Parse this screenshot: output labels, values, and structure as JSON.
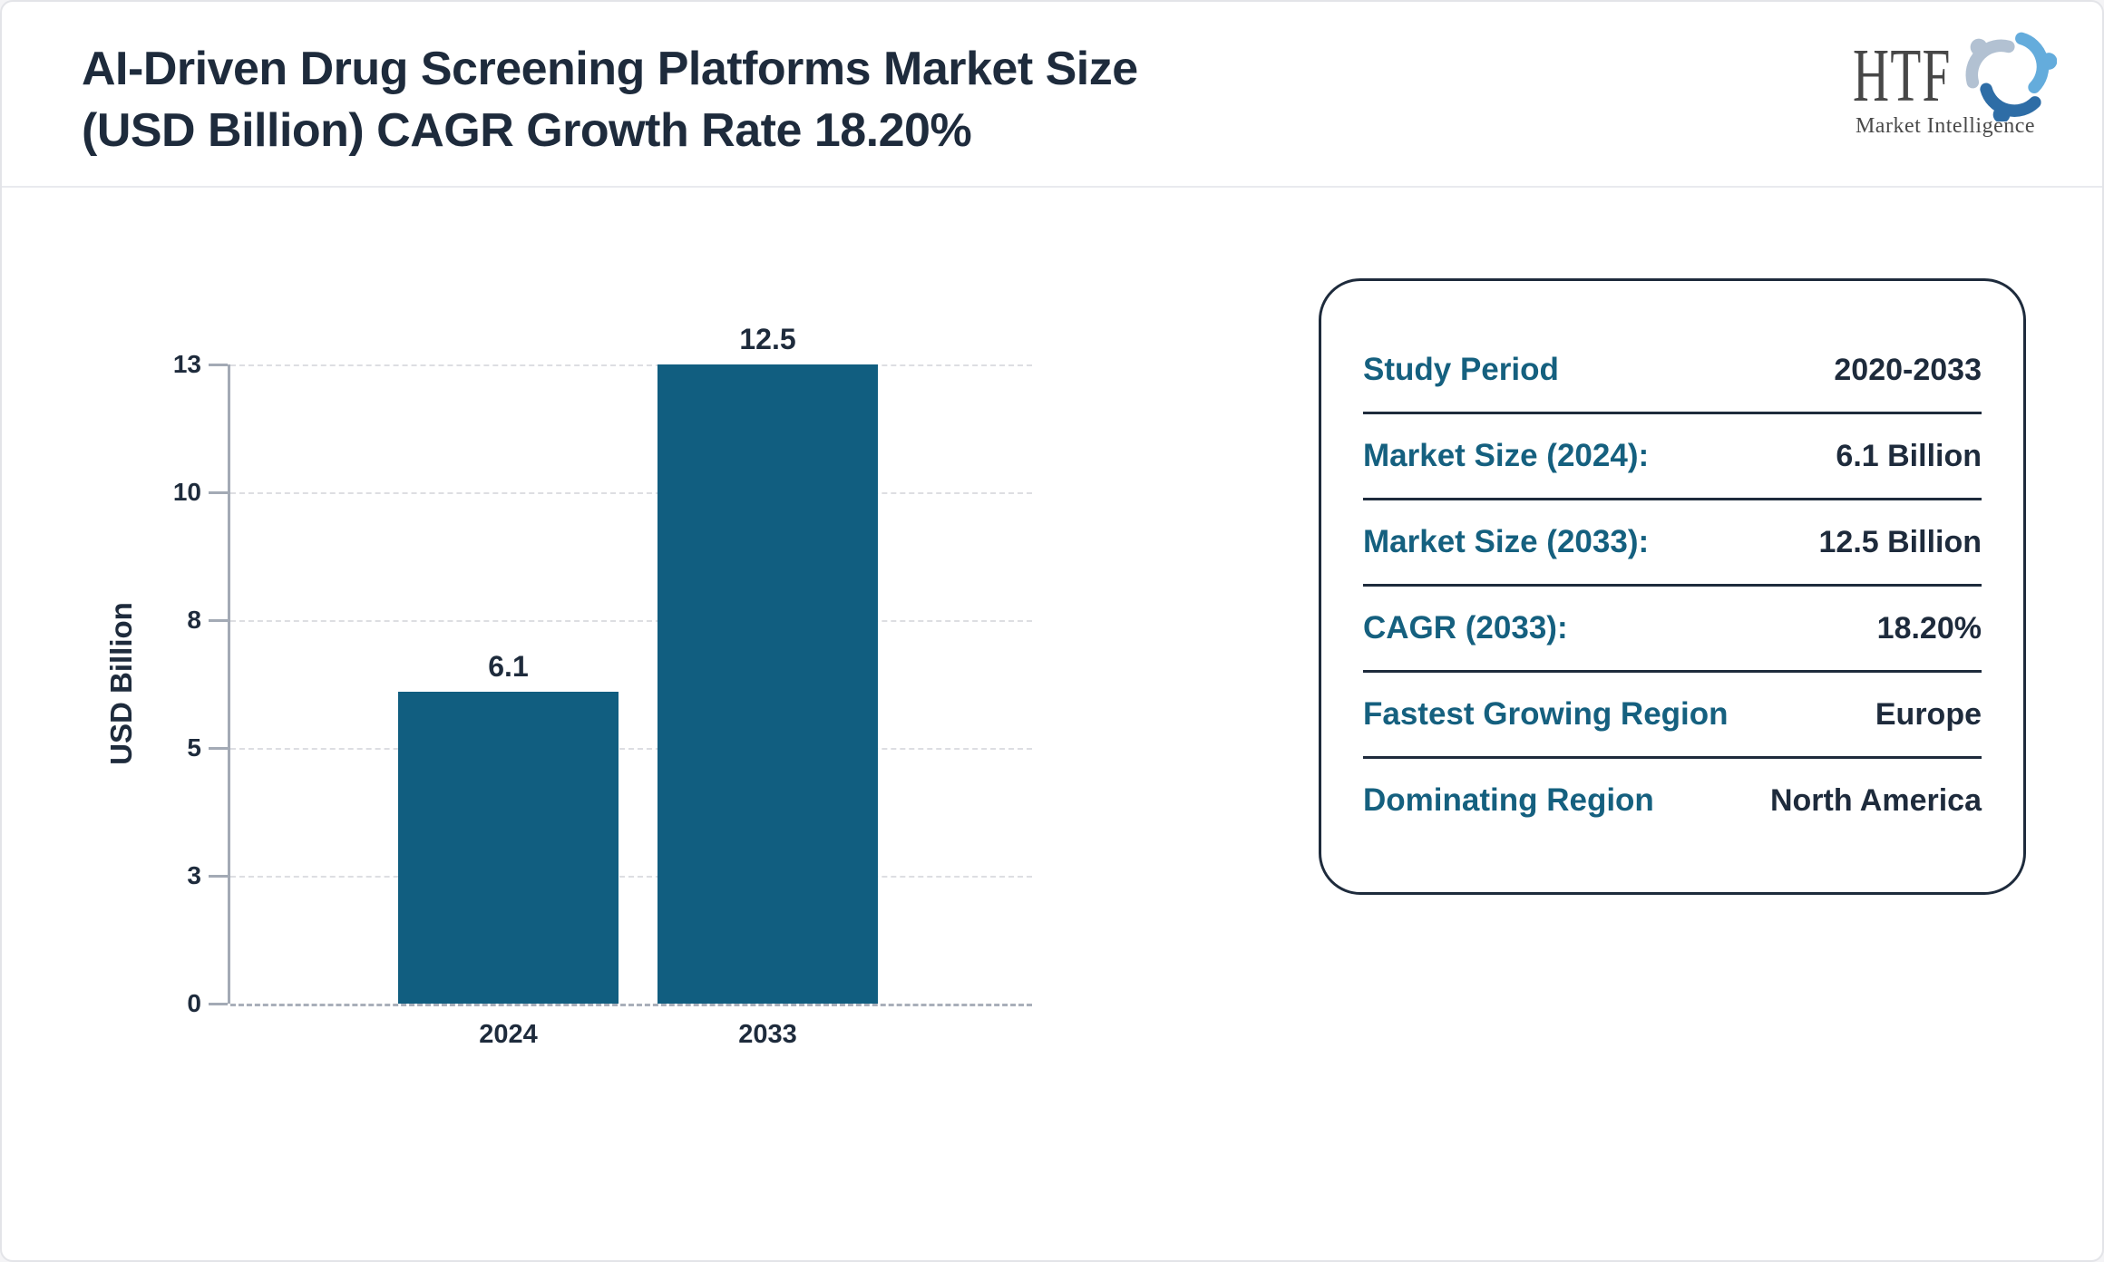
{
  "header": {
    "title_line1": "AI-Driven Drug Screening Platforms Market Size",
    "title_line2": "(USD Billion) CAGR Growth Rate 18.20%",
    "logo": {
      "text": "HTF",
      "subtext": "Market Intelligence",
      "icon": "htf-swirl-figures-icon",
      "icon_colors": [
        "#64acdc",
        "#b2c1d2",
        "#2e6da6"
      ]
    }
  },
  "chart_data": {
    "type": "bar",
    "title": "AI-Driven Drug Screening Platforms Market Size (USD Billion) CAGR Growth Rate 18.20%",
    "categories": [
      "2024",
      "2033"
    ],
    "values": [
      6.1,
      12.5
    ],
    "bar_labels": [
      "6.1",
      "12.5"
    ],
    "xlabel": "",
    "ylabel": "USD Billion",
    "ylim": [
      0,
      12.5
    ],
    "yticks": {
      "labels": [
        "0",
        "3",
        "5",
        "8",
        "10",
        "13"
      ],
      "values": [
        0,
        2.5,
        5,
        7.5,
        10,
        12.5
      ]
    },
    "grid": "horizontal-dashed",
    "legend": "none",
    "bar_color": "#115e80"
  },
  "info_card": {
    "rows": [
      {
        "label": "Study Period",
        "value": "2020-2033"
      },
      {
        "label": "Market Size (2024):",
        "value": "6.1 Billion"
      },
      {
        "label": "Market Size (2033):",
        "value": "12.5 Billion"
      },
      {
        "label": "CAGR (2033):",
        "value": "18.20%"
      },
      {
        "label": "Fastest Growing Region",
        "value": "Europe"
      },
      {
        "label": "Dominating Region",
        "value": "North America"
      }
    ]
  },
  "colors": {
    "bar": "#115e80",
    "navy_text": "#1e2b3c",
    "teal_label": "#15607f",
    "axis": "#a3aab5",
    "gridline": "#dddee2",
    "frame_border": "#e3e4e8"
  }
}
